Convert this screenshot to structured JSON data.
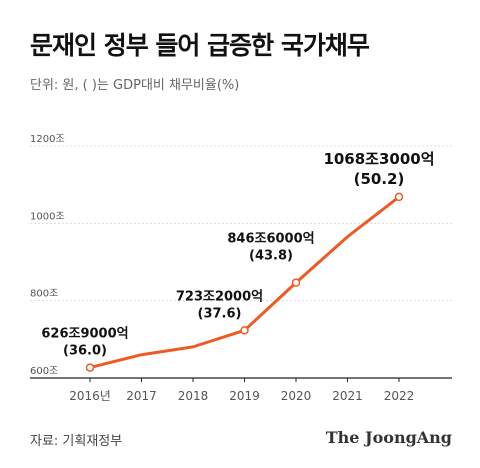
{
  "header": {
    "title": "문재인 정부 들어 급증한 국가채무",
    "unit_note": "단위: 원, ( )는 GDP대비 채무비율(%)"
  },
  "footer": {
    "source": "자료: 기획재정부",
    "logo": "The JoongAng"
  },
  "colors": {
    "line": "#ee5a24",
    "marker_fill": "#ffffff",
    "axis": "#222222",
    "grid": "#dddddd"
  },
  "chart_data": {
    "type": "line",
    "title": "문재인 정부 들어 급증한 국가채무",
    "xlabel": "",
    "ylabel": "",
    "categories": [
      "2016년",
      "2017",
      "2018",
      "2019",
      "2020",
      "2021",
      "2022"
    ],
    "series": [
      {
        "values": [
          626.9,
          660.2,
          680.5,
          723.2,
          846.6,
          965.3,
          1068.3
        ]
      }
    ],
    "ylim": [
      600,
      1200
    ],
    "yticks": [
      {
        "value": 600,
        "label": "600조"
      },
      {
        "value": 800,
        "label": "800조"
      },
      {
        "value": 1000,
        "label": "1000조"
      },
      {
        "value": 1200,
        "label": "1200조"
      }
    ],
    "grid": true,
    "markers_at": [
      0,
      3,
      4,
      6
    ],
    "annotations": [
      {
        "index": 0,
        "amount": "626조9000억",
        "ratio": "(36.0)"
      },
      {
        "index": 3,
        "amount": "723조2000억",
        "ratio": "(37.6)"
      },
      {
        "index": 4,
        "amount": "846조6000억",
        "ratio": "(43.8)"
      },
      {
        "index": 6,
        "amount": "1068조3000억",
        "ratio": "(50.2)"
      }
    ]
  }
}
